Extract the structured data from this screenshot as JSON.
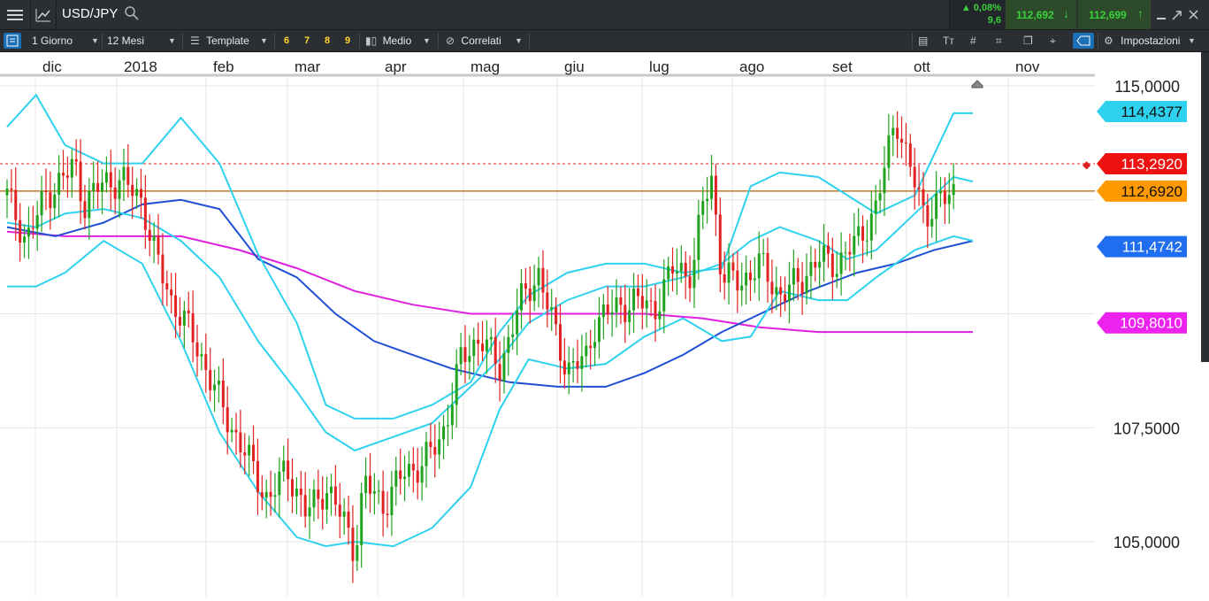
{
  "header": {
    "symbol": "USD/JPY",
    "change_pct": "▲ 0,08%",
    "change_pts": "9,6",
    "bid": "112,692",
    "ask": "112,699"
  },
  "toolbar": {
    "period": "1 Giorno",
    "range": "12 Mesi",
    "template": "Template",
    "numbers": [
      "6",
      "7",
      "8",
      "9"
    ],
    "mode": "Medio",
    "related": "Correlati",
    "settings": "Impostazioni"
  },
  "colors": {
    "up_candle": "#22a31f",
    "down_candle": "#e02222",
    "bollinger": "#2ed2ef",
    "ma_short": "#1f4fd4",
    "ma_long": "#e020e0",
    "price_line": "#b06000",
    "ref_line": "#e02020"
  },
  "chart_data": {
    "type": "candlestick",
    "title": "",
    "x_labels": [
      "dic",
      "2018",
      "feb",
      "mar",
      "apr",
      "mag",
      "giu",
      "lug",
      "ago",
      "set",
      "ott",
      "nov"
    ],
    "y_ticks": [
      "115,0000",
      "107,5000",
      "105,0000"
    ],
    "ylim": [
      103.8,
      115.2
    ],
    "gridlines": true,
    "price_tags": [
      {
        "value": 114.4377,
        "label": "114,4377",
        "color": "#2ed2ef",
        "text_color": "#111111"
      },
      {
        "value": 113.292,
        "label": "113,2920",
        "color": "#ee1111",
        "text_color": "#ffffff"
      },
      {
        "value": 112.692,
        "label": "112,6920",
        "color": "#ff9900",
        "text_color": "#111111"
      },
      {
        "value": 111.4742,
        "label": "111,4742",
        "color": "#1f6ef0",
        "text_color": "#ffffff"
      },
      {
        "value": 109.801,
        "label": "109,8010",
        "color": "#ee22ee",
        "text_color": "#ffffff"
      }
    ],
    "series": [
      {
        "type": "bollinger_upper",
        "values": [
          [
            0,
            114.1
          ],
          [
            3,
            114.8
          ],
          [
            6,
            113.7
          ],
          [
            10,
            113.3
          ],
          [
            14,
            113.3
          ],
          [
            18,
            114.3
          ],
          [
            22,
            113.3
          ],
          [
            26,
            111.3
          ],
          [
            30,
            109.8
          ],
          [
            33,
            108.0
          ],
          [
            36,
            107.7
          ],
          [
            40,
            107.7
          ],
          [
            44,
            108.0
          ],
          [
            48,
            108.5
          ],
          [
            51,
            109.6
          ],
          [
            54,
            110.4
          ],
          [
            58,
            110.9
          ],
          [
            62,
            111.1
          ],
          [
            66,
            111.1
          ],
          [
            70,
            110.9
          ],
          [
            74,
            111.0
          ],
          [
            77,
            112.8
          ],
          [
            80,
            113.1
          ],
          [
            84,
            113.0
          ],
          [
            87,
            112.6
          ],
          [
            90,
            112.2
          ],
          [
            94,
            112.6
          ],
          [
            98,
            114.4
          ],
          [
            100,
            114.4
          ]
        ]
      },
      {
        "type": "bollinger_mid",
        "values": [
          [
            0,
            112.0
          ],
          [
            3,
            111.9
          ],
          [
            6,
            112.2
          ],
          [
            10,
            112.3
          ],
          [
            14,
            112.1
          ],
          [
            18,
            111.6
          ],
          [
            22,
            110.8
          ],
          [
            26,
            109.4
          ],
          [
            30,
            108.3
          ],
          [
            33,
            107.4
          ],
          [
            36,
            107.0
          ],
          [
            40,
            107.3
          ],
          [
            44,
            107.6
          ],
          [
            48,
            108.4
          ],
          [
            51,
            109.0
          ],
          [
            54,
            109.8
          ],
          [
            58,
            110.3
          ],
          [
            62,
            110.6
          ],
          [
            66,
            110.6
          ],
          [
            70,
            110.8
          ],
          [
            74,
            111.1
          ],
          [
            77,
            111.6
          ],
          [
            80,
            111.9
          ],
          [
            84,
            111.6
          ],
          [
            87,
            111.2
          ],
          [
            90,
            111.4
          ],
          [
            94,
            112.2
          ],
          [
            98,
            113.0
          ],
          [
            100,
            112.9
          ]
        ]
      },
      {
        "type": "bollinger_lower",
        "values": [
          [
            0,
            110.6
          ],
          [
            3,
            110.6
          ],
          [
            6,
            110.9
          ],
          [
            10,
            111.6
          ],
          [
            14,
            111.1
          ],
          [
            18,
            109.4
          ],
          [
            22,
            107.4
          ],
          [
            26,
            106.1
          ],
          [
            30,
            105.1
          ],
          [
            33,
            104.9
          ],
          [
            36,
            105.0
          ],
          [
            40,
            104.9
          ],
          [
            44,
            105.3
          ],
          [
            48,
            106.2
          ],
          [
            51,
            107.9
          ],
          [
            54,
            109.0
          ],
          [
            58,
            108.8
          ],
          [
            62,
            108.9
          ],
          [
            66,
            109.5
          ],
          [
            70,
            109.9
          ],
          [
            74,
            109.4
          ],
          [
            77,
            109.5
          ],
          [
            80,
            110.5
          ],
          [
            84,
            110.3
          ],
          [
            87,
            110.3
          ],
          [
            90,
            110.8
          ],
          [
            94,
            111.4
          ],
          [
            98,
            111.7
          ],
          [
            100,
            111.6
          ]
        ]
      },
      {
        "type": "ma_short",
        "values": [
          [
            0,
            111.9
          ],
          [
            5,
            111.7
          ],
          [
            10,
            112.0
          ],
          [
            14,
            112.4
          ],
          [
            18,
            112.5
          ],
          [
            22,
            112.3
          ],
          [
            26,
            111.2
          ],
          [
            30,
            110.8
          ],
          [
            34,
            110.0
          ],
          [
            38,
            109.4
          ],
          [
            42,
            109.1
          ],
          [
            46,
            108.8
          ],
          [
            52,
            108.5
          ],
          [
            57,
            108.4
          ],
          [
            62,
            108.4
          ],
          [
            66,
            108.7
          ],
          [
            70,
            109.1
          ],
          [
            74,
            109.6
          ],
          [
            78,
            110.0
          ],
          [
            83,
            110.5
          ],
          [
            88,
            110.9
          ],
          [
            92,
            111.1
          ],
          [
            96,
            111.4
          ],
          [
            100,
            111.6
          ]
        ]
      },
      {
        "type": "ma_long",
        "values": [
          [
            0,
            111.8
          ],
          [
            6,
            111.7
          ],
          [
            12,
            111.7
          ],
          [
            18,
            111.7
          ],
          [
            24,
            111.4
          ],
          [
            30,
            111.0
          ],
          [
            36,
            110.5
          ],
          [
            42,
            110.2
          ],
          [
            48,
            110.0
          ],
          [
            54,
            110.0
          ],
          [
            60,
            110.0
          ],
          [
            66,
            110.0
          ],
          [
            72,
            109.9
          ],
          [
            78,
            109.7
          ],
          [
            84,
            109.6
          ],
          [
            90,
            109.6
          ],
          [
            95,
            109.6
          ],
          [
            100,
            109.6
          ]
        ]
      },
      {
        "type": "price_candles",
        "values": [
          [
            0,
            112.6
          ],
          [
            2,
            111.6
          ],
          [
            4,
            112.6
          ],
          [
            6,
            113.0
          ],
          [
            7,
            113.3
          ],
          [
            8,
            112.4
          ],
          [
            10,
            112.9
          ],
          [
            12,
            112.9
          ],
          [
            14,
            112.5
          ],
          [
            15,
            111.5
          ],
          [
            17,
            110.3
          ],
          [
            19,
            109.6
          ],
          [
            21,
            108.6
          ],
          [
            23,
            107.6
          ],
          [
            25,
            106.8
          ],
          [
            27,
            105.9
          ],
          [
            29,
            106.6
          ],
          [
            31,
            105.6
          ],
          [
            33,
            106.2
          ],
          [
            35,
            105.4
          ],
          [
            36,
            104.8
          ],
          [
            37,
            106.3
          ],
          [
            39,
            105.8
          ],
          [
            41,
            106.5
          ],
          [
            43,
            106.7
          ],
          [
            45,
            107.3
          ],
          [
            46,
            108.1
          ],
          [
            47,
            109.0
          ],
          [
            49,
            109.5
          ],
          [
            51,
            108.8
          ],
          [
            53,
            110.2
          ],
          [
            55,
            110.9
          ],
          [
            57,
            109.4
          ],
          [
            58,
            108.8
          ],
          [
            60,
            109.0
          ],
          [
            61,
            109.9
          ],
          [
            63,
            110.1
          ],
          [
            65,
            110.3
          ],
          [
            67,
            110.1
          ],
          [
            69,
            111.0
          ],
          [
            71,
            110.9
          ],
          [
            72,
            112.4
          ],
          [
            73,
            113.0
          ],
          [
            74,
            110.8
          ],
          [
            76,
            110.7
          ],
          [
            78,
            111.1
          ],
          [
            80,
            110.4
          ],
          [
            82,
            110.7
          ],
          [
            84,
            111.2
          ],
          [
            86,
            111.1
          ],
          [
            88,
            111.6
          ],
          [
            90,
            112.3
          ],
          [
            92,
            114.4
          ],
          [
            93,
            113.5
          ],
          [
            95,
            112.2
          ],
          [
            97,
            112.5
          ],
          [
            98,
            112.7
          ]
        ]
      }
    ]
  }
}
